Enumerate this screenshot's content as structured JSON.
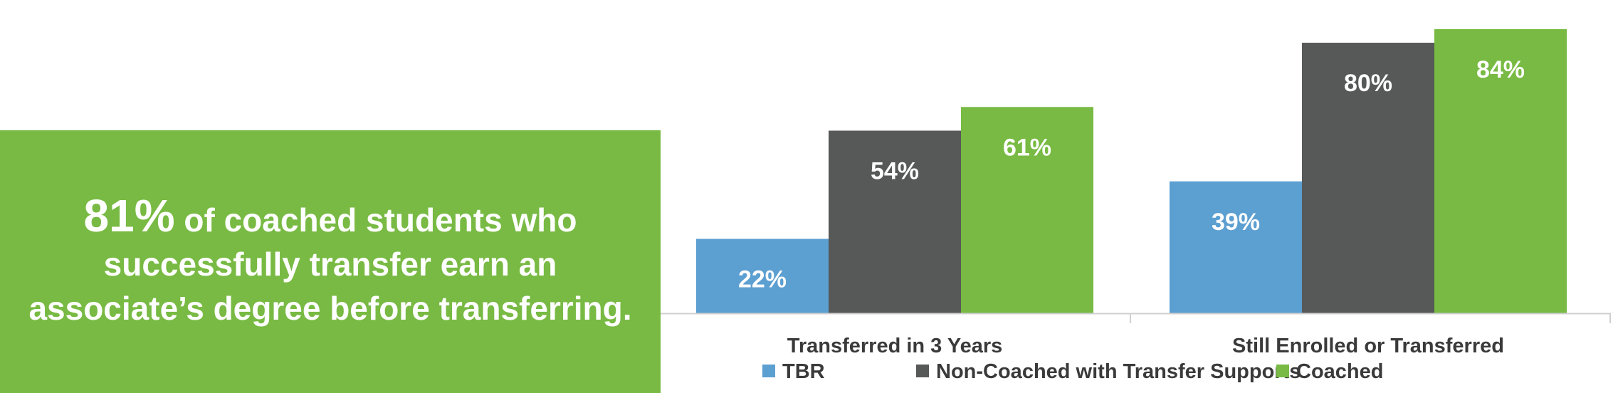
{
  "callout": {
    "highlight": "81%",
    "text": " of coached students who successfully transfer earn an associate’s degree before transferring."
  },
  "colors": {
    "accent_green": "#78ba43",
    "tbr_blue": "#5c9fd1",
    "non_coached_gray": "#575958"
  },
  "chart_data": {
    "type": "bar",
    "categories": [
      "Transferred in 3 Years",
      "Still Enrolled or Transferred"
    ],
    "series": [
      {
        "name": "TBR",
        "values": [
          22,
          39
        ],
        "labels": [
          "22%",
          "39%"
        ],
        "color": "#5c9fd1"
      },
      {
        "name": "Non-Coached with Transfer Supports",
        "values": [
          54,
          80
        ],
        "labels": [
          "54%",
          "80%"
        ],
        "color": "#575958"
      },
      {
        "name": "Coached",
        "values": [
          61,
          84
        ],
        "labels": [
          "61%",
          "84%"
        ],
        "color": "#78ba43"
      }
    ],
    "unit": "%",
    "ylim": [
      0,
      100
    ],
    "grid": false,
    "legend_position": "bottom"
  }
}
